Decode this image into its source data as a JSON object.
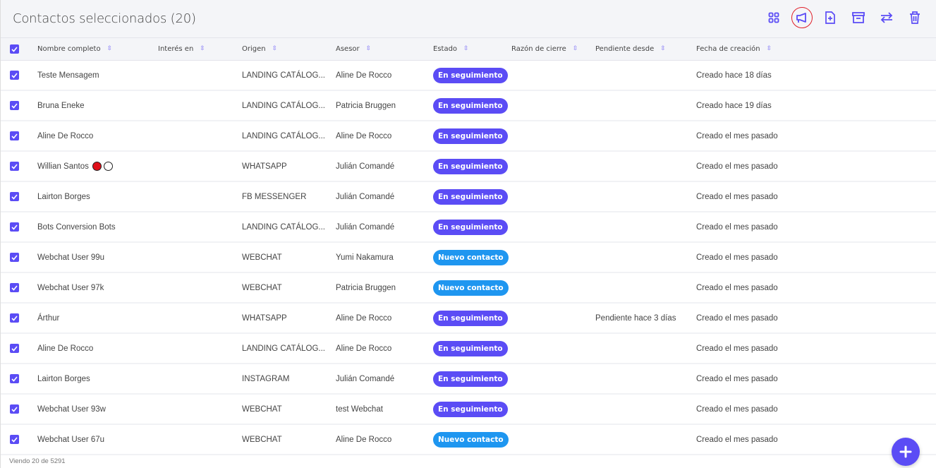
{
  "header": {
    "title": "Contactos seleccionados (20)",
    "tools": [
      {
        "icon": "grid-icon"
      },
      {
        "icon": "megaphone-icon"
      },
      {
        "icon": "file-add-icon"
      },
      {
        "icon": "archive-icon"
      },
      {
        "icon": "transfer-icon"
      },
      {
        "icon": "trash-icon"
      }
    ]
  },
  "colors": {
    "accent": "#5b4cf5",
    "seguimiento": "#5b4cf5",
    "nuevo": "#1e96f0",
    "highlight_ring": "#e0202a"
  },
  "columns": [
    "Nombre completo",
    "Interés en",
    "Origen",
    "Asesor",
    "Estado",
    "Razón de cierre",
    "Pendiente desde",
    "Fecha de creación"
  ],
  "rows": [
    {
      "nombre": "Teste Mensagem",
      "interes": "",
      "origen": "LANDING CATÁLOG...",
      "asesor": "Aline De Rocco",
      "estado": "En seguimiento",
      "razon": "",
      "pendiente": "",
      "fecha": "Creado hace 18 días"
    },
    {
      "nombre": "Bruna Eneke",
      "interes": "",
      "origen": "LANDING CATÁLOG...",
      "asesor": "Patricia Bruggen",
      "estado": "En seguimiento",
      "razon": "",
      "pendiente": "",
      "fecha": "Creado hace 19 días"
    },
    {
      "nombre": "Aline De Rocco",
      "interes": "",
      "origen": "LANDING CATÁLOG...",
      "asesor": "Aline De Rocco",
      "estado": "En seguimiento",
      "razon": "",
      "pendiente": "",
      "fecha": "Creado el mes pasado"
    },
    {
      "nombre": "Willian Santos",
      "dots": true,
      "interes": "",
      "origen": "WHATSAPP",
      "asesor": "Julián Comandé",
      "estado": "En seguimiento",
      "razon": "",
      "pendiente": "",
      "fecha": "Creado el mes pasado"
    },
    {
      "nombre": "Lairton Borges",
      "interes": "",
      "origen": "FB MESSENGER",
      "asesor": "Julián Comandé",
      "estado": "En seguimiento",
      "razon": "",
      "pendiente": "",
      "fecha": "Creado el mes pasado"
    },
    {
      "nombre": "Bots Conversion Bots",
      "interes": "",
      "origen": "LANDING CATÁLOG...",
      "asesor": "Julián Comandé",
      "estado": "En seguimiento",
      "razon": "",
      "pendiente": "",
      "fecha": "Creado el mes pasado"
    },
    {
      "nombre": "Webchat User 99u",
      "interes": "",
      "origen": "WEBCHAT",
      "asesor": "Yumi Nakamura",
      "estado": "Nuevo contacto",
      "razon": "",
      "pendiente": "",
      "fecha": "Creado el mes pasado"
    },
    {
      "nombre": "Webchat User 97k",
      "interes": "",
      "origen": "WEBCHAT",
      "asesor": "Patricia Bruggen",
      "estado": "Nuevo contacto",
      "razon": "",
      "pendiente": "",
      "fecha": "Creado el mes pasado"
    },
    {
      "nombre": "Árthur",
      "interes": "",
      "origen": "WHATSAPP",
      "asesor": "Aline De Rocco",
      "estado": "En seguimiento",
      "razon": "",
      "pendiente": "Pendiente hace 3 días",
      "fecha": "Creado el mes pasado"
    },
    {
      "nombre": "Aline De Rocco",
      "interes": "",
      "origen": "LANDING CATÁLOG...",
      "asesor": "Aline De Rocco",
      "estado": "En seguimiento",
      "razon": "",
      "pendiente": "",
      "fecha": "Creado el mes pasado"
    },
    {
      "nombre": "Lairton Borges",
      "interes": "",
      "origen": "INSTAGRAM",
      "asesor": "Julián Comandé",
      "estado": "En seguimiento",
      "razon": "",
      "pendiente": "",
      "fecha": "Creado el mes pasado"
    },
    {
      "nombre": "Webchat User 93w",
      "interes": "",
      "origen": "WEBCHAT",
      "asesor": "test Webchat",
      "estado": "En seguimiento",
      "razon": "",
      "pendiente": "",
      "fecha": "Creado el mes pasado"
    },
    {
      "nombre": "Webchat User 67u",
      "interes": "",
      "origen": "WEBCHAT",
      "asesor": "Aline De Rocco",
      "estado": "Nuevo contacto",
      "razon": "",
      "pendiente": "",
      "fecha": "Creado el mes pasado"
    }
  ],
  "footer": {
    "count": "Viendo 20 de 5291"
  }
}
